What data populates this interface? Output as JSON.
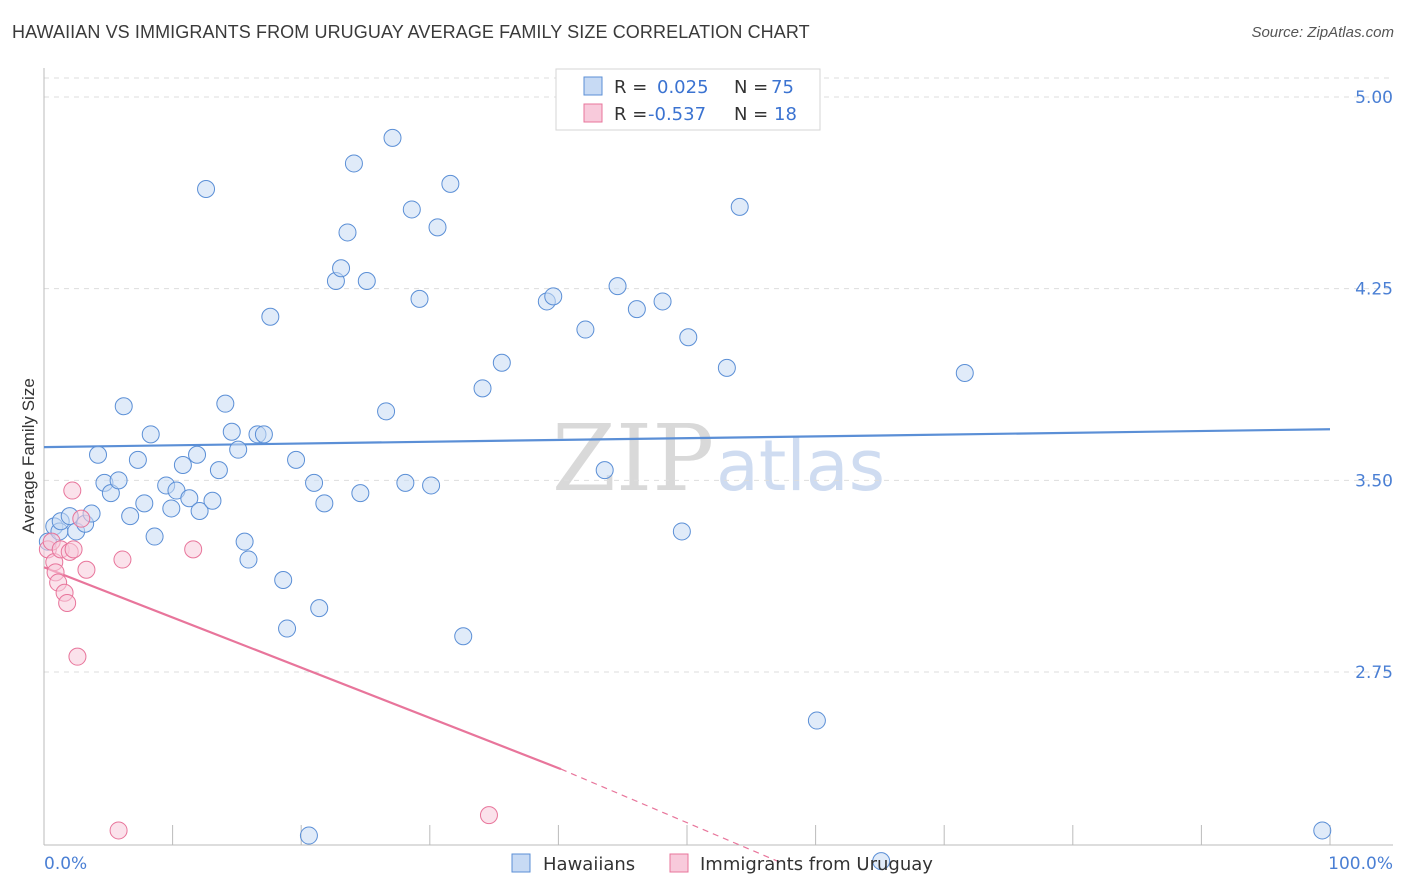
{
  "title": "HAWAIIAN VS IMMIGRANTS FROM URUGUAY AVERAGE FAMILY SIZE CORRELATION CHART",
  "source": "Source: ZipAtlas.com",
  "watermark": {
    "part1": "ZIP",
    "part2": "atlas"
  },
  "colors": {
    "blue": "#5b8fd6",
    "blue_fill": "#c7daf4",
    "pink": "#e8759b",
    "pink_fill": "#f8cadb",
    "axis_text": "#4a7fd4"
  },
  "legend_top": {
    "rows": [
      {
        "r_label": "R =",
        "r_value": "0.025",
        "n_label": "N =",
        "n_value": "75"
      },
      {
        "r_label": "R =",
        "r_value": "-0.537",
        "n_label": "N =",
        "n_value": "18"
      }
    ]
  },
  "legend_bottom": [
    "Hawaiians",
    "Immigrants from Uruguay"
  ],
  "chart_data": {
    "type": "scatter",
    "title": "HAWAIIAN VS IMMIGRANTS FROM URUGUAY AVERAGE FAMILY SIZE CORRELATION CHART",
    "xlabel": "",
    "ylabel": "Average Family Size",
    "xlim": [
      0,
      100
    ],
    "ylim": [
      2.0,
      5.1
    ],
    "x_tick_labels": [
      "0.0%",
      "100.0%"
    ],
    "y_ticks": [
      2.75,
      3.5,
      4.25,
      5.0
    ],
    "y_tick_labels": [
      "2.75",
      "3.50",
      "4.25",
      "5.00"
    ],
    "grid": true,
    "legend_placement": "top-center",
    "series": [
      {
        "name": "Hawaiians",
        "color": "#5b8fd6",
        "points": [
          [
            0.3,
            3.26
          ],
          [
            0.8,
            3.32
          ],
          [
            1.2,
            3.3
          ],
          [
            1.3,
            3.34
          ],
          [
            2.0,
            3.36
          ],
          [
            2.5,
            3.3
          ],
          [
            3.2,
            3.33
          ],
          [
            3.7,
            3.37
          ],
          [
            4.2,
            3.6
          ],
          [
            4.7,
            3.49
          ],
          [
            5.2,
            3.45
          ],
          [
            5.8,
            3.5
          ],
          [
            6.2,
            3.79
          ],
          [
            6.7,
            3.36
          ],
          [
            7.3,
            3.58
          ],
          [
            7.8,
            3.41
          ],
          [
            8.3,
            3.68
          ],
          [
            8.6,
            3.28
          ],
          [
            9.5,
            3.48
          ],
          [
            9.9,
            3.39
          ],
          [
            10.3,
            3.46
          ],
          [
            10.8,
            3.56
          ],
          [
            11.3,
            3.43
          ],
          [
            11.9,
            3.6
          ],
          [
            12.1,
            3.38
          ],
          [
            12.6,
            4.64
          ],
          [
            13.1,
            3.42
          ],
          [
            13.6,
            3.54
          ],
          [
            14.1,
            3.8
          ],
          [
            14.6,
            3.69
          ],
          [
            15.1,
            3.62
          ],
          [
            15.6,
            3.26
          ],
          [
            15.9,
            3.19
          ],
          [
            16.6,
            3.68
          ],
          [
            17.1,
            3.68
          ],
          [
            17.6,
            4.14
          ],
          [
            18.6,
            3.11
          ],
          [
            18.9,
            2.92
          ],
          [
            19.6,
            3.58
          ],
          [
            20.6,
            2.11
          ],
          [
            21.0,
            3.49
          ],
          [
            21.4,
            3.0
          ],
          [
            21.8,
            3.41
          ],
          [
            22.7,
            4.28
          ],
          [
            23.1,
            4.33
          ],
          [
            23.6,
            4.47
          ],
          [
            24.1,
            4.74
          ],
          [
            24.6,
            3.45
          ],
          [
            25.1,
            4.28
          ],
          [
            26.6,
            3.77
          ],
          [
            27.1,
            4.84
          ],
          [
            28.1,
            3.49
          ],
          [
            28.6,
            4.56
          ],
          [
            29.2,
            4.21
          ],
          [
            30.1,
            3.48
          ],
          [
            30.6,
            4.49
          ],
          [
            31.6,
            4.66
          ],
          [
            32.6,
            2.89
          ],
          [
            34.1,
            3.86
          ],
          [
            35.6,
            3.96
          ],
          [
            39.1,
            4.2
          ],
          [
            39.6,
            4.22
          ],
          [
            42.1,
            4.09
          ],
          [
            43.6,
            3.54
          ],
          [
            44.6,
            4.26
          ],
          [
            46.1,
            4.17
          ],
          [
            48.1,
            4.2
          ],
          [
            49.6,
            3.3
          ],
          [
            50.1,
            4.06
          ],
          [
            53.1,
            3.94
          ],
          [
            54.1,
            4.57
          ],
          [
            60.1,
            2.56
          ],
          [
            65.1,
            2.01
          ],
          [
            71.6,
            3.92
          ],
          [
            99.4,
            2.13
          ]
        ]
      },
      {
        "name": "Immigrants from Uruguay",
        "color": "#e8759b",
        "points": [
          [
            0.3,
            3.23
          ],
          [
            0.6,
            3.26
          ],
          [
            0.8,
            3.18
          ],
          [
            0.9,
            3.14
          ],
          [
            1.1,
            3.1
          ],
          [
            1.3,
            3.23
          ],
          [
            1.6,
            3.06
          ],
          [
            1.8,
            3.02
          ],
          [
            2.0,
            3.22
          ],
          [
            2.2,
            3.46
          ],
          [
            2.3,
            3.23
          ],
          [
            2.6,
            2.81
          ],
          [
            2.9,
            3.35
          ],
          [
            3.3,
            3.15
          ],
          [
            6.1,
            3.19
          ],
          [
            11.6,
            3.23
          ],
          [
            5.8,
            2.13
          ],
          [
            34.6,
            2.19
          ]
        ]
      }
    ],
    "trendlines": [
      {
        "series": "Hawaiians",
        "x": [
          0,
          100
        ],
        "y": [
          3.63,
          3.7
        ],
        "style": "solid"
      },
      {
        "series": "Immigrants from Uruguay",
        "x": [
          0,
          40.2
        ],
        "y": [
          3.16,
          2.37
        ],
        "style": "solid",
        "extended_x": [
          40.2,
          57.5
        ],
        "extended_y": [
          2.37,
          2.0
        ],
        "extended_style": "dashed"
      }
    ]
  }
}
